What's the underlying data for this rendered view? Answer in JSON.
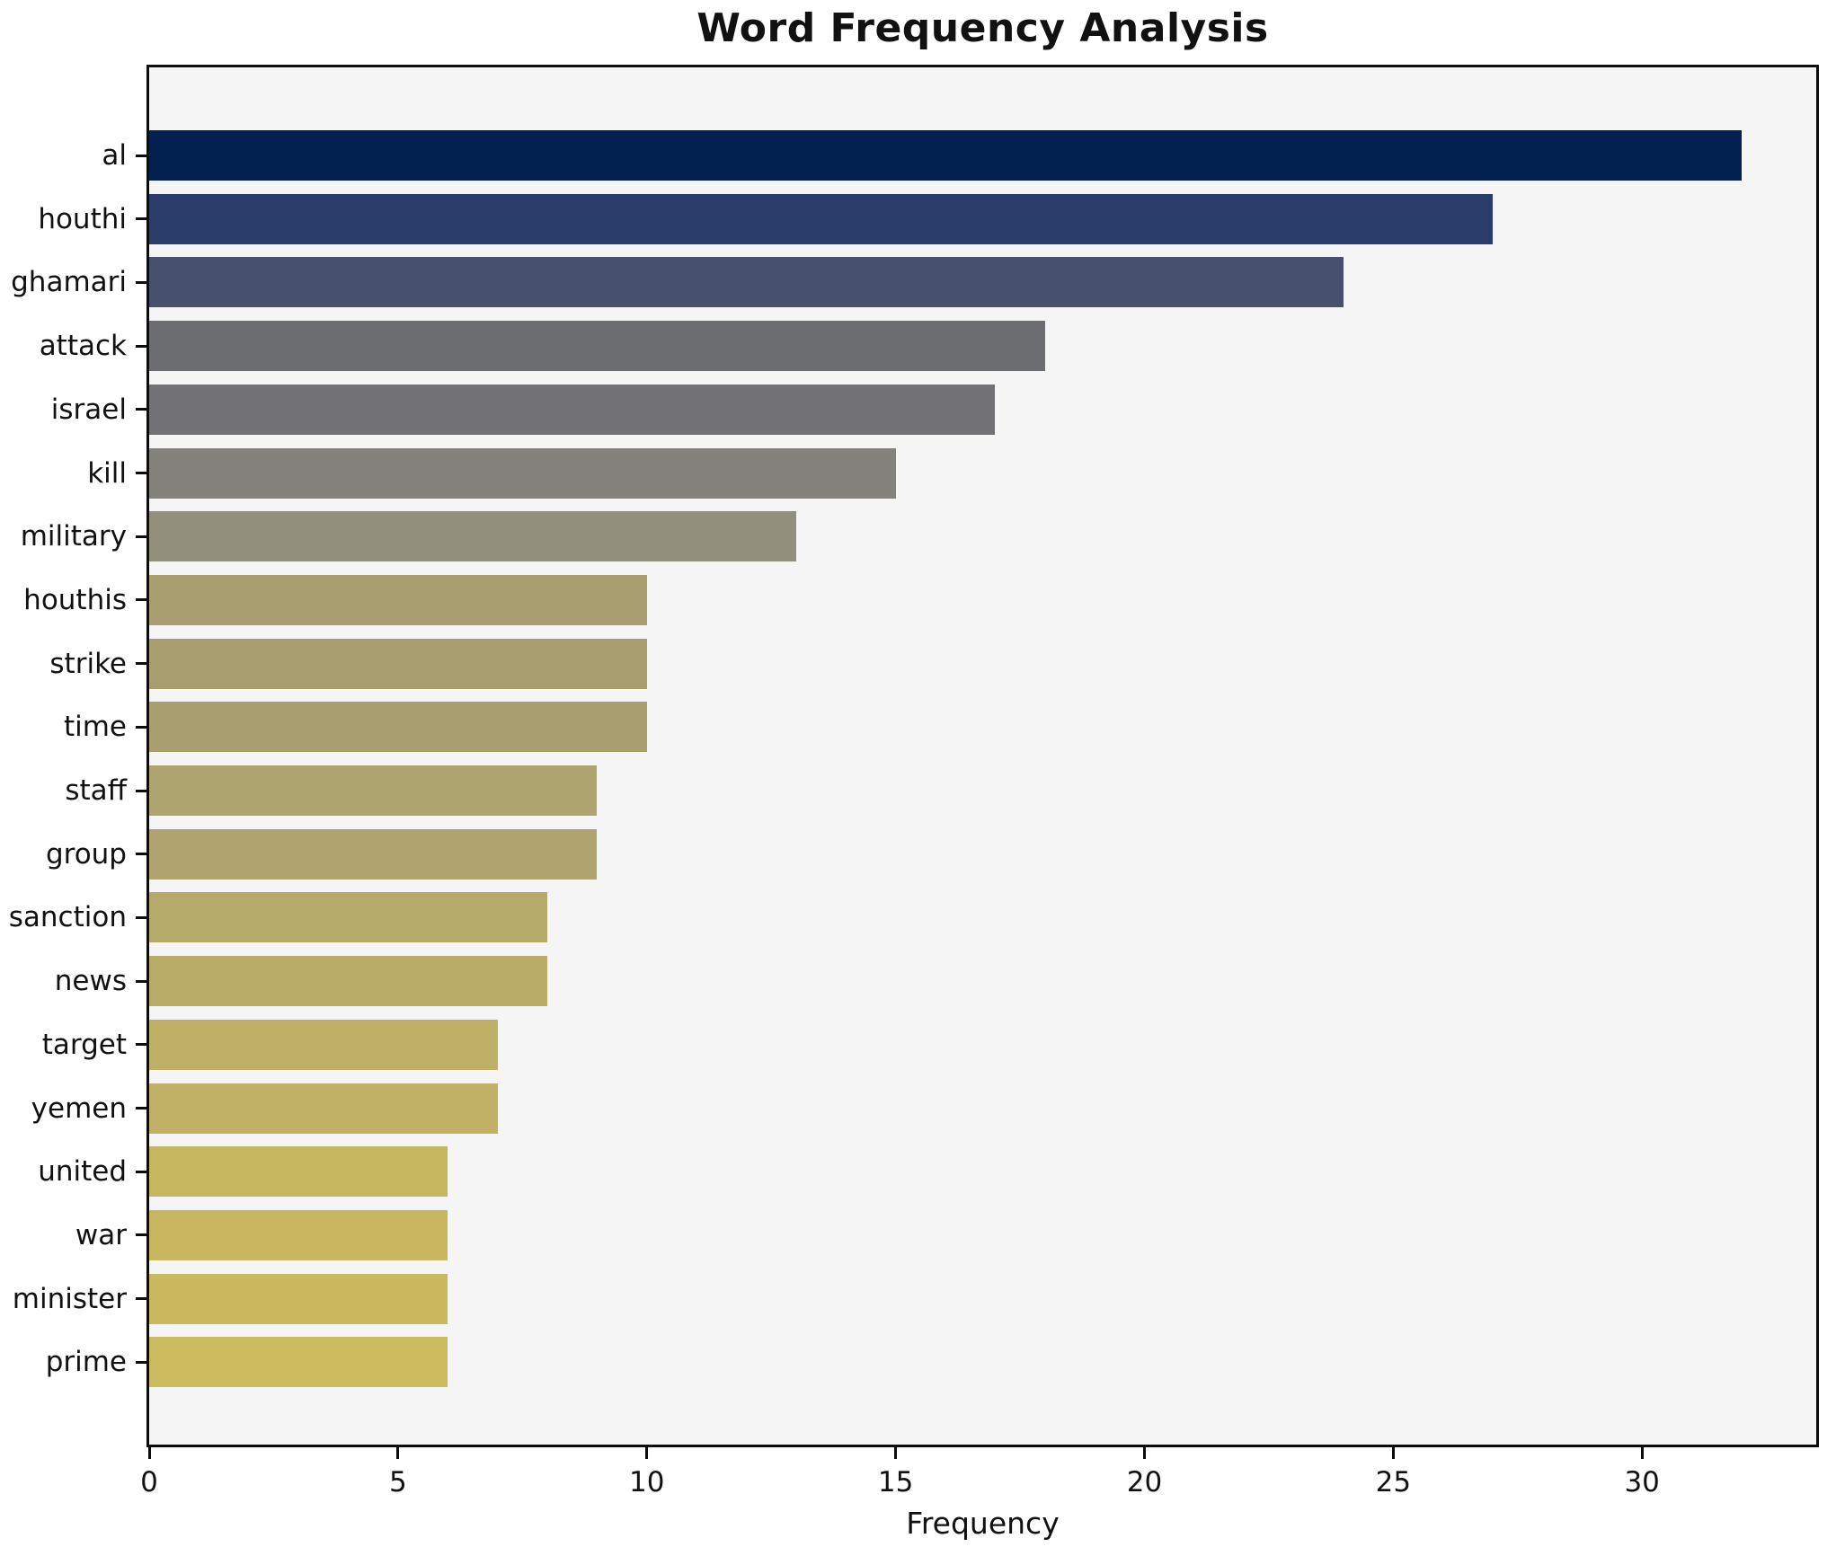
{
  "title": "Word Frequency Analysis",
  "xlabel": "Frequency",
  "chart_data": {
    "type": "bar",
    "orientation": "horizontal",
    "title": "Word Frequency Analysis",
    "xlabel": "Frequency",
    "ylabel": "",
    "categories": [
      "al",
      "houthi",
      "ghamari",
      "attack",
      "israel",
      "kill",
      "military",
      "houthis",
      "strike",
      "time",
      "staff",
      "group",
      "sanction",
      "news",
      "target",
      "yemen",
      "united",
      "war",
      "minister",
      "prime"
    ],
    "values": [
      32,
      27,
      24,
      18,
      17,
      15,
      13,
      10,
      10,
      10,
      9,
      9,
      8,
      8,
      7,
      7,
      6,
      6,
      6,
      6
    ],
    "bar_colors": [
      "#022050",
      "#2a3c6a",
      "#47506f",
      "#6c6d71",
      "#727276",
      "#84827c",
      "#92907d",
      "#a89e6f",
      "#a99f6e",
      "#a99f6e",
      "#aea46f",
      "#afa46f",
      "#b6aa6b",
      "#b9ac69",
      "#bfb067",
      "#c0b166",
      "#c7b660",
      "#c9b75f",
      "#cab85e",
      "#ccba5e"
    ],
    "xlim": [
      0,
      33.5
    ],
    "xticks": [
      0,
      5,
      10,
      15,
      20,
      25,
      30
    ],
    "grid": false,
    "legend_position": "none",
    "plot_background": "#f6f5f6",
    "figure_background": "#ffffff"
  }
}
